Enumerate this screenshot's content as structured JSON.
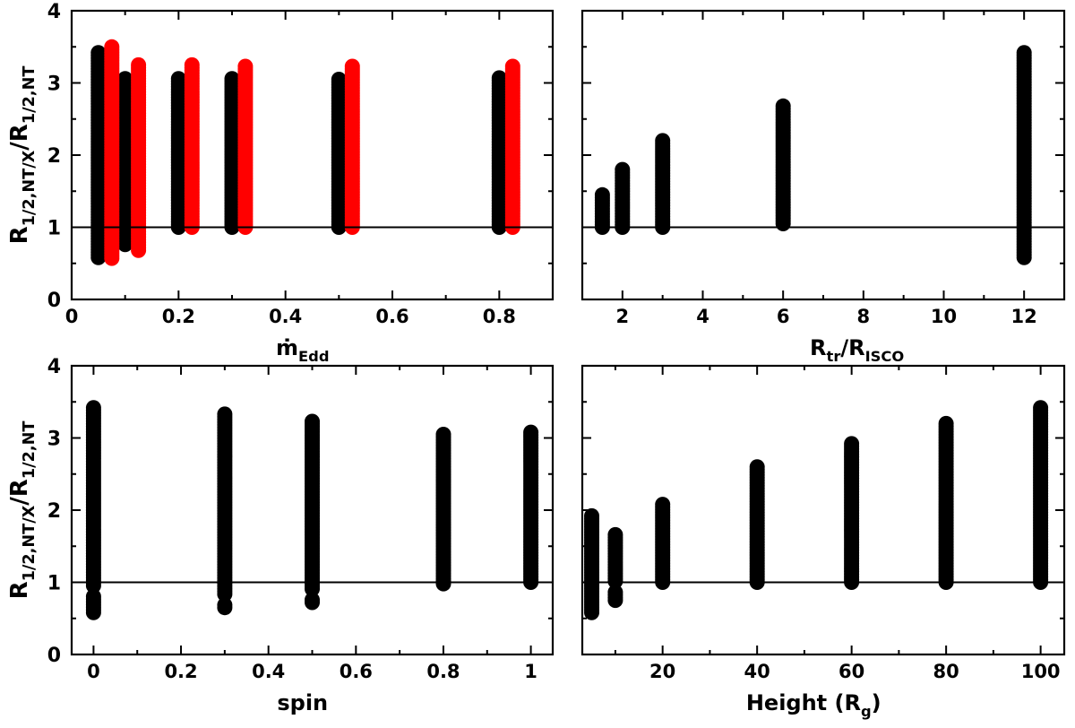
{
  "figure": {
    "y_axis_label": {
      "main": "R",
      "sub1": "1/2,NT/X",
      "sep": "/R",
      "sub2": "1/2,NT"
    },
    "reference_line_y": 1
  },
  "chart_data": [
    {
      "type": "scatter",
      "xlabel": {
        "main": "ṁ",
        "sub": "Edd"
      },
      "ylabel": "R_1/2,NT/X / R_1/2,NT",
      "xlim": [
        0,
        0.9
      ],
      "ylim": [
        0,
        4
      ],
      "xticks": [
        0,
        0.2,
        0.4,
        0.6,
        0.8
      ],
      "xtick_labels": [
        "0",
        "0.2",
        "0.4",
        "0.6",
        "0.8"
      ],
      "yticks": [
        0,
        1,
        2,
        3,
        4
      ],
      "ytick_labels": [
        "0",
        "1",
        "2",
        "3",
        "4"
      ],
      "series": [
        {
          "name": "black",
          "color": "#000000",
          "columns": [
            {
              "x": 0.05,
              "ymin": 0.58,
              "ymax": 3.42
            },
            {
              "x": 0.1,
              "ymin": 0.76,
              "ymax": 3.06
            },
            {
              "x": 0.2,
              "ymin": 1.0,
              "ymax": 3.06
            },
            {
              "x": 0.3,
              "ymin": 1.0,
              "ymax": 3.06
            },
            {
              "x": 0.5,
              "ymin": 1.0,
              "ymax": 3.05
            },
            {
              "x": 0.8,
              "ymin": 1.0,
              "ymax": 3.07
            }
          ]
        },
        {
          "name": "red",
          "color": "#ff0000",
          "columns": [
            {
              "x": 0.075,
              "ymin": 0.57,
              "ymax": 3.5
            },
            {
              "x": 0.125,
              "ymin": 0.68,
              "ymax": 3.25
            },
            {
              "x": 0.225,
              "ymin": 1.0,
              "ymax": 3.25
            },
            {
              "x": 0.325,
              "ymin": 1.0,
              "ymax": 3.23
            },
            {
              "x": 0.525,
              "ymin": 1.0,
              "ymax": 3.23
            },
            {
              "x": 0.825,
              "ymin": 1.0,
              "ymax": 3.23
            }
          ]
        }
      ]
    },
    {
      "type": "scatter",
      "xlabel": {
        "main": "R",
        "sub": "tr",
        "sep": "/R",
        "sub2": "ISCO"
      },
      "ylabel": "",
      "xlim": [
        1,
        13
      ],
      "ylim": [
        0,
        4
      ],
      "xticks": [
        2,
        4,
        6,
        8,
        10,
        12
      ],
      "xtick_labels": [
        "2",
        "4",
        "6",
        "8",
        "10",
        "12"
      ],
      "yticks": [
        0,
        1,
        2,
        3,
        4
      ],
      "ytick_labels": [],
      "series": [
        {
          "name": "black",
          "color": "#000000",
          "columns": [
            {
              "x": 1.5,
              "ymin": 1.0,
              "ymax": 1.45
            },
            {
              "x": 2,
              "ymin": 1.0,
              "ymax": 1.8
            },
            {
              "x": 3,
              "ymin": 1.0,
              "ymax": 2.2
            },
            {
              "x": 6,
              "ymin": 1.05,
              "ymax": 2.68
            },
            {
              "x": 12,
              "ymin": 0.58,
              "ymax": 3.42
            }
          ]
        }
      ]
    },
    {
      "type": "scatter",
      "xlabel": {
        "main": "spin"
      },
      "ylabel": "R_1/2,NT/X / R_1/2,NT",
      "xlim": [
        -0.05,
        1.05
      ],
      "ylim": [
        0,
        4
      ],
      "xticks": [
        0,
        0.2,
        0.4,
        0.6,
        0.8,
        1
      ],
      "xtick_labels": [
        "0",
        "0.2",
        "0.4",
        "0.6",
        "0.8",
        "1"
      ],
      "yticks": [
        0,
        1,
        2,
        3,
        4
      ],
      "ytick_labels": [
        "0",
        "1",
        "2",
        "3",
        "4"
      ],
      "series": [
        {
          "name": "black",
          "color": "#000000",
          "columns": [
            {
              "x": 0,
              "ymin": 0.58,
              "ymax": 3.42,
              "gaps": [
                [
                  0.82,
                  0.92
                ]
              ]
            },
            {
              "x": 0.3,
              "ymin": 0.65,
              "ymax": 3.33,
              "gaps": [
                [
                  0.72,
                  0.8
                ]
              ]
            },
            {
              "x": 0.5,
              "ymin": 0.72,
              "ymax": 3.23,
              "gaps": [
                [
                  0.78,
                  0.9
                ]
              ]
            },
            {
              "x": 0.8,
              "ymin": 0.98,
              "ymax": 3.05
            },
            {
              "x": 1,
              "ymin": 1.0,
              "ymax": 3.08
            }
          ]
        }
      ]
    },
    {
      "type": "scatter",
      "xlabel": {
        "main": "Height  (R",
        "sub": "g",
        "end": ")"
      },
      "ylabel": "",
      "xlim": [
        3,
        105
      ],
      "ylim": [
        0,
        4
      ],
      "xticks": [
        20,
        40,
        60,
        80,
        100
      ],
      "xtick_labels": [
        "20",
        "40",
        "60",
        "80",
        "100"
      ],
      "yticks": [
        0,
        1,
        2,
        3,
        4
      ],
      "ytick_labels": [],
      "series": [
        {
          "name": "black",
          "color": "#000000",
          "columns": [
            {
              "x": 5,
              "ymin": 0.58,
              "ymax": 1.92
            },
            {
              "x": 10,
              "ymin": 0.75,
              "ymax": 1.66,
              "gaps": [
                [
                  0.88,
                  0.98
                ]
              ]
            },
            {
              "x": 20,
              "ymin": 1.0,
              "ymax": 2.08
            },
            {
              "x": 40,
              "ymin": 1.0,
              "ymax": 2.6
            },
            {
              "x": 60,
              "ymin": 1.0,
              "ymax": 2.92
            },
            {
              "x": 80,
              "ymin": 1.0,
              "ymax": 3.2
            },
            {
              "x": 100,
              "ymin": 1.0,
              "ymax": 3.42
            }
          ]
        }
      ]
    }
  ]
}
